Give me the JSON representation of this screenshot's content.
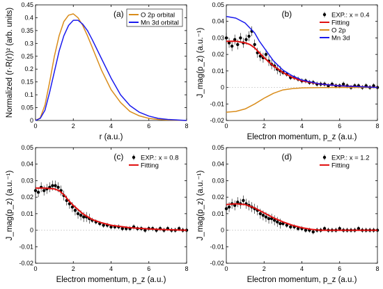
{
  "chart_data": [
    {
      "type": "line",
      "panel_label": "(a)",
      "xlabel": "r (a.u.)",
      "ylabel": "Normalized (r·R(r))² (arb. units)",
      "xlim": [
        0,
        8
      ],
      "ylim": [
        0,
        0.45
      ],
      "xticks": [
        "0",
        "2",
        "4",
        "6",
        "8"
      ],
      "yticks": [
        "0",
        "0.05",
        "0.1",
        "0.15",
        "0.2",
        "0.25",
        "0.3",
        "0.35",
        "0.4",
        "0.45"
      ],
      "legend_position": "top-right",
      "series": [
        {
          "name": "O 2p orbital",
          "color": "#d98c1a",
          "x": [
            0,
            0.25,
            0.5,
            0.75,
            1.0,
            1.25,
            1.5,
            1.75,
            2.0,
            2.25,
            2.5,
            2.75,
            3.0,
            3.5,
            4.0,
            4.5,
            5.0,
            5.5,
            6.0,
            6.5,
            7.0,
            8.0
          ],
          "y": [
            0,
            0.01,
            0.06,
            0.15,
            0.25,
            0.33,
            0.385,
            0.41,
            0.415,
            0.4,
            0.37,
            0.33,
            0.285,
            0.195,
            0.12,
            0.07,
            0.035,
            0.018,
            0.008,
            0.004,
            0.002,
            0
          ]
        },
        {
          "name": "Mn 3d orbital",
          "color": "#1a1aee",
          "x": [
            0,
            0.25,
            0.5,
            0.75,
            1.0,
            1.25,
            1.5,
            1.75,
            2.0,
            2.25,
            2.5,
            2.75,
            3.0,
            3.5,
            4.0,
            4.5,
            5.0,
            5.5,
            6.0,
            6.5,
            7.0,
            8.0
          ],
          "y": [
            0,
            0.008,
            0.04,
            0.11,
            0.19,
            0.27,
            0.33,
            0.37,
            0.39,
            0.39,
            0.375,
            0.35,
            0.315,
            0.24,
            0.165,
            0.1,
            0.058,
            0.032,
            0.017,
            0.008,
            0.004,
            0
          ]
        }
      ]
    },
    {
      "type": "scatter",
      "panel_label": "(b)",
      "xlabel": "Electron momentum, p_z (a.u.)",
      "ylabel": "J_mag(p_z) (a.u.⁻¹)",
      "xlim": [
        0,
        8
      ],
      "ylim": [
        -0.02,
        0.05
      ],
      "xticks": [
        "0",
        "2",
        "4",
        "6",
        "8"
      ],
      "yticks": [
        "-0.02",
        "-0.01",
        "0",
        "0.01",
        "0.02",
        "0.03",
        "0.04",
        "0.05"
      ],
      "legend_position": "top-right",
      "experiment": {
        "name": "EXP.: x = 0.4",
        "x": [
          0,
          0.15,
          0.3,
          0.45,
          0.6,
          0.75,
          0.9,
          1.05,
          1.2,
          1.35,
          1.5,
          1.65,
          1.8,
          1.95,
          2.1,
          2.25,
          2.4,
          2.55,
          2.7,
          2.85,
          3.0,
          3.2,
          3.4,
          3.6,
          3.8,
          4.0,
          4.2,
          4.4,
          4.6,
          4.8,
          5.0,
          5.2,
          5.4,
          5.6,
          5.8,
          6.0,
          6.2,
          6.4,
          6.6,
          6.8,
          7.0,
          7.2,
          7.4,
          7.6,
          7.8,
          8.0
        ],
        "y": [
          0.03,
          0.027,
          0.025,
          0.029,
          0.026,
          0.03,
          0.027,
          0.029,
          0.031,
          0.034,
          0.026,
          0.021,
          0.019,
          0.018,
          0.02,
          0.016,
          0.014,
          0.013,
          0.011,
          0.01,
          0.009,
          0.008,
          0.006,
          0.006,
          0.005,
          0.004,
          0.004,
          0.003,
          0.003,
          0.002,
          0.002,
          0.002,
          0.001,
          0.002,
          0.001,
          0.001,
          0.002,
          0.001,
          0.0,
          0.001,
          0.001,
          0.0,
          0.001,
          0.0,
          0.001,
          0.0
        ]
      },
      "series": [
        {
          "name": "Fitting",
          "color": "#e01010",
          "x": [
            0,
            0.5,
            1.0,
            1.25,
            1.5,
            1.75,
            2.0,
            2.5,
            3.0,
            3.5,
            4.0,
            5.0,
            6.0,
            7.0,
            8.0
          ],
          "y": [
            0.028,
            0.028,
            0.027,
            0.026,
            0.024,
            0.021,
            0.018,
            0.013,
            0.009,
            0.006,
            0.004,
            0.002,
            0.001,
            0.0005,
            0
          ]
        },
        {
          "name": "O 2p",
          "color": "#d98c1a",
          "x": [
            0,
            0.5,
            1.0,
            1.5,
            2.0,
            2.5,
            3.0,
            3.5,
            4.0,
            5.0,
            6.0,
            7.0,
            8.0
          ],
          "y": [
            -0.015,
            -0.0145,
            -0.013,
            -0.01,
            -0.0065,
            -0.0035,
            -0.0015,
            -0.0007,
            -0.0003,
            -0.0001,
            0,
            0,
            0
          ]
        },
        {
          "name": "Mn 3d",
          "color": "#1a1aee",
          "x": [
            0,
            0.5,
            1.0,
            1.5,
            1.75,
            2.0,
            2.5,
            3.0,
            3.5,
            4.0,
            5.0,
            6.0,
            7.0,
            8.0
          ],
          "y": [
            0.043,
            0.042,
            0.039,
            0.033,
            0.028,
            0.024,
            0.016,
            0.0105,
            0.007,
            0.0045,
            0.002,
            0.001,
            0.0005,
            0
          ]
        }
      ]
    },
    {
      "type": "scatter",
      "panel_label": "(c)",
      "xlabel": "Electron momentum, p_z (a.u.)",
      "ylabel": "J_mag(p_z) (a.u.⁻¹)",
      "xlim": [
        0,
        8
      ],
      "ylim": [
        -0.02,
        0.05
      ],
      "xticks": [
        "0",
        "2",
        "4",
        "6",
        "8"
      ],
      "yticks": [
        "-0.02",
        "-0.01",
        "0",
        "0.01",
        "0.02",
        "0.03",
        "0.04",
        "0.05"
      ],
      "legend_position": "top-right",
      "experiment": {
        "name": "EXP.: x = 0.8",
        "x": [
          0,
          0.15,
          0.3,
          0.45,
          0.6,
          0.75,
          0.9,
          1.05,
          1.2,
          1.35,
          1.5,
          1.65,
          1.8,
          1.95,
          2.1,
          2.25,
          2.4,
          2.55,
          2.7,
          2.85,
          3.0,
          3.2,
          3.4,
          3.6,
          3.8,
          4.0,
          4.2,
          4.4,
          4.6,
          4.8,
          5.0,
          5.2,
          5.4,
          5.6,
          5.8,
          6.0,
          6.2,
          6.4,
          6.6,
          6.8,
          7.0,
          7.2,
          7.4,
          7.6,
          7.8,
          8.0
        ],
        "y": [
          0.024,
          0.023,
          0.026,
          0.024,
          0.025,
          0.026,
          0.027,
          0.027,
          0.026,
          0.024,
          0.021,
          0.018,
          0.016,
          0.014,
          0.012,
          0.01,
          0.009,
          0.008,
          0.008,
          0.007,
          0.006,
          0.005,
          0.004,
          0.003,
          0.003,
          0.002,
          0.002,
          0.002,
          0.001,
          0.001,
          0.001,
          0.002,
          0.001,
          0.001,
          0.0,
          0.001,
          0.001,
          0.0,
          0.001,
          0.0,
          0.001,
          0.0,
          0.0,
          0.001,
          0.0,
          0.0
        ]
      },
      "series": [
        {
          "name": "Fitting",
          "color": "#e01010",
          "x": [
            0,
            0.5,
            1.0,
            1.25,
            1.5,
            1.75,
            2.0,
            2.5,
            3.0,
            3.5,
            4.0,
            5.0,
            6.0,
            7.0,
            8.0
          ],
          "y": [
            0.0255,
            0.0255,
            0.025,
            0.024,
            0.0215,
            0.018,
            0.015,
            0.01,
            0.0065,
            0.0045,
            0.003,
            0.0015,
            0.0008,
            0.0003,
            0
          ]
        }
      ]
    },
    {
      "type": "scatter",
      "panel_label": "(d)",
      "xlabel": "Electron momentum, p_z (a.u.)",
      "ylabel": "J_mag(p_z) (a.u.⁻¹)",
      "xlim": [
        0,
        8
      ],
      "ylim": [
        -0.02,
        0.05
      ],
      "xticks": [
        "0",
        "2",
        "4",
        "6",
        "8"
      ],
      "yticks": [
        "-0.02",
        "-0.01",
        "0",
        "0.01",
        "0.02",
        "0.03",
        "0.04",
        "0.05"
      ],
      "legend_position": "top-right",
      "experiment": {
        "name": "EXP.: x = 1.2",
        "x": [
          0,
          0.15,
          0.3,
          0.45,
          0.6,
          0.75,
          0.9,
          1.05,
          1.2,
          1.35,
          1.5,
          1.65,
          1.8,
          1.95,
          2.1,
          2.25,
          2.4,
          2.55,
          2.7,
          2.85,
          3.0,
          3.2,
          3.4,
          3.6,
          3.8,
          4.0,
          4.2,
          4.4,
          4.6,
          4.8,
          5.0,
          5.2,
          5.4,
          5.6,
          5.8,
          6.0,
          6.2,
          6.4,
          6.6,
          6.8,
          7.0,
          7.2,
          7.4,
          7.6,
          7.8,
          8.0
        ],
        "y": [
          0.013,
          0.014,
          0.016,
          0.015,
          0.017,
          0.016,
          0.018,
          0.016,
          0.015,
          0.014,
          0.013,
          0.012,
          0.01,
          0.009,
          0.008,
          0.007,
          0.007,
          0.006,
          0.005,
          0.004,
          0.004,
          0.003,
          0.002,
          0.002,
          0.001,
          0.001,
          0.0,
          0.0,
          -0.001,
          0.0,
          0.0,
          0.001,
          0.0,
          0.0,
          0.0,
          0.001,
          0.0,
          0.0,
          0.0,
          0.0,
          0.001,
          0.0,
          0.0,
          0.0,
          0.0,
          0.0
        ]
      },
      "series": [
        {
          "name": "Fitting",
          "color": "#e01010",
          "x": [
            0,
            0.5,
            1.0,
            1.5,
            2.0,
            2.5,
            3.0,
            3.5,
            4.0,
            4.5,
            5.0,
            6.0,
            7.0,
            8.0
          ],
          "y": [
            0.0155,
            0.016,
            0.0155,
            0.0135,
            0.0105,
            0.0075,
            0.005,
            0.003,
            0.0015,
            0.0005,
            0,
            0,
            0,
            0
          ]
        }
      ]
    }
  ]
}
